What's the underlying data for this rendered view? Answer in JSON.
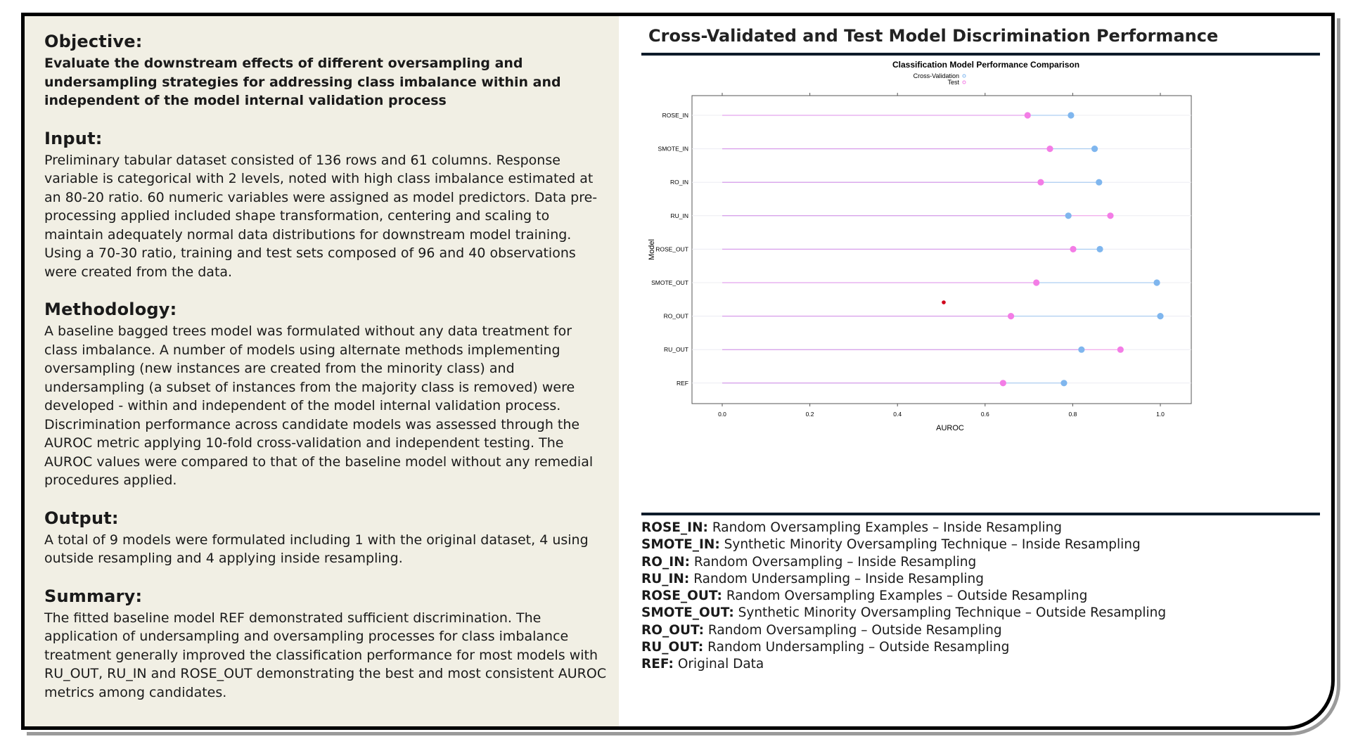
{
  "sections": [
    {
      "title": "Objective:",
      "body": "Evaluate the downstream effects of different oversampling and undersampling strategies for addressing class imbalance within and independent of the model internal validation process",
      "bold": true
    },
    {
      "title": "Input:",
      "body": "Preliminary tabular dataset consisted of 136 rows and 61 columns. Response variable is categorical with 2 levels, noted with high class imbalance estimated at an 80-20 ratio. 60 numeric variables were assigned as model predictors. Data pre-processing applied included shape transformation, centering and scaling to maintain adequately normal data distributions for downstream model training. Using a 70-30 ratio, training and test sets composed of 96 and 40 observations were created from the data.",
      "bold": false
    },
    {
      "title": "Methodology:",
      "body": "A baseline bagged trees model was formulated without any data treatment for class imbalance. A number of models using alternate methods implementing oversampling (new instances are created from the minority class) and undersampling (a subset of instances from the majority class is removed) were developed - within and independent of the model internal validation process. Discrimination performance across candidate models was assessed through the AUROC metric applying 10-fold cross-validation and independent testing. The AUROC values were compared to that of the baseline model without any remedial procedures applied.",
      "bold": false
    },
    {
      "title": "Output:",
      "body": "A total of 9 models were formulated including 1 with the original dataset, 4 using outside resampling and 4 applying inside resampling.",
      "bold": false
    },
    {
      "title": "Summary:",
      "body": "The fitted baseline model REF demonstrated sufficient discrimination. The application of undersampling and oversampling processes for class imbalance treatment generally improved the classification performance for most models with RU_OUT, RU_IN and ROSE_OUT demonstrating the best and most consistent AUROC metrics among candidates.",
      "bold": false
    }
  ],
  "right_title": "Cross-Validated and Test Model Discrimination Performance",
  "chart_data": {
    "type": "scatter",
    "title": "Classification Model Performance Comparison",
    "xlabel": "AUROC",
    "ylabel": "Model",
    "xlim": [
      0.0,
      1.0
    ],
    "x_ticks": [
      "0.0",
      "0.2",
      "0.4",
      "0.6",
      "0.8",
      "1.0"
    ],
    "categories": [
      "ROSE_IN",
      "SMOTE_IN",
      "RO_IN",
      "RU_IN",
      "ROSE_OUT",
      "SMOTE_OUT",
      "RO_OUT",
      "RU_OUT",
      "REF"
    ],
    "series": [
      {
        "name": "Cross-Validation",
        "color": "#7fb6ee",
        "values": [
          0.796,
          0.85,
          0.86,
          0.79,
          0.862,
          0.992,
          1.0,
          0.82,
          0.78
        ]
      },
      {
        "name": "Test",
        "color": "#f37de6",
        "values": [
          0.697,
          0.748,
          0.727,
          0.886,
          0.801,
          0.717,
          0.659,
          0.909,
          0.641
        ]
      }
    ],
    "legend_position": "top",
    "grid": true
  },
  "abbreviations": [
    {
      "key": "ROSE_IN:",
      "value": "Random Oversampling Examples – Inside Resampling"
    },
    {
      "key": "SMOTE_IN:",
      "value": "Synthetic Minority Oversampling Technique – Inside Resampling"
    },
    {
      "key": "RO_IN:",
      "value": "Random Oversampling – Inside Resampling"
    },
    {
      "key": "RU_IN:",
      "value": "Random Undersampling – Inside Resampling"
    },
    {
      "key": "ROSE_OUT:",
      "value": "Random Oversampling Examples – Outside Resampling"
    },
    {
      "key": "SMOTE_OUT:",
      "value": "Synthetic Minority Oversampling Technique – Outside Resampling"
    },
    {
      "key": "RO_OUT:",
      "value": "Random Oversampling – Outside Resampling"
    },
    {
      "key": "RU_OUT:",
      "value": "Random Undersampling – Outside Resampling"
    },
    {
      "key": "REF:",
      "value": "Original Data"
    }
  ]
}
